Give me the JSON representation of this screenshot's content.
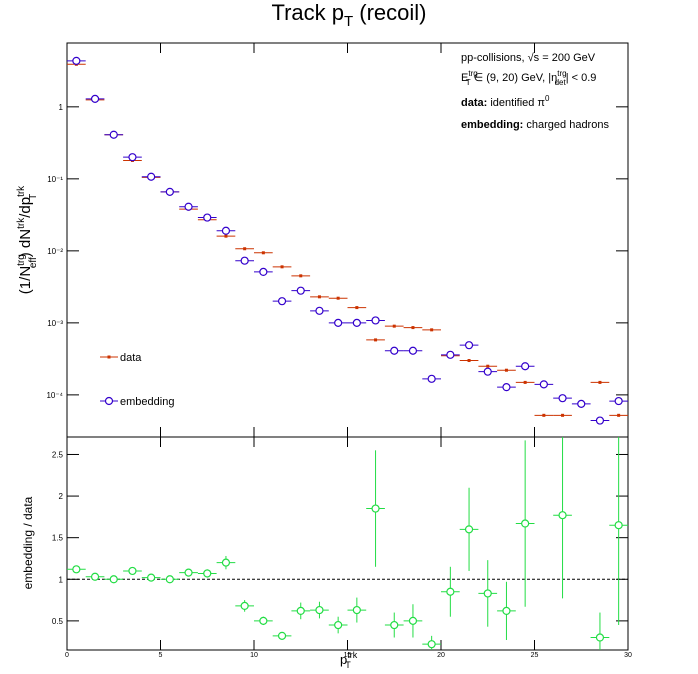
{
  "chart_data": [
    {
      "type": "scatter",
      "title": [
        "Track p",
        "T",
        " (recoil)"
      ],
      "ylabel": [
        "(1/N",
        "trg",
        "eff",
        ") dN",
        "trk",
        "/dp",
        "trk",
        "T"
      ],
      "annotations": [
        [
          "pp-collisions, ",
          "√s = 200 GeV"
        ],
        [
          "E",
          "trg",
          "T",
          " ∈ (9, 20) GeV, |η",
          "trg",
          "det",
          "| < 0.9"
        ],
        [
          "data:",
          " identified π",
          "0"
        ],
        [
          "embedding:",
          " charged hadrons"
        ]
      ],
      "x": [
        0.5,
        1.5,
        2.5,
        3.5,
        4.5,
        5.5,
        6.5,
        7.5,
        8.5,
        9.5,
        10.5,
        11.5,
        12.5,
        13.5,
        14.5,
        15.5,
        16.5,
        17.5,
        18.5,
        19.5,
        20.5,
        21.5,
        22.5,
        23.5,
        24.5,
        25.5,
        26.5,
        27.5,
        28.5,
        29.5
      ],
      "xerr": 0.5,
      "series": [
        {
          "name": "data",
          "color": "#cc3300",
          "marker": "square",
          "values": [
            3.9,
            1.25,
            0.41,
            0.18,
            0.105,
            0.066,
            0.038,
            0.027,
            0.016,
            0.0107,
            0.0094,
            0.006,
            0.0045,
            0.0023,
            0.0022,
            0.00163,
            0.00058,
            0.0009,
            0.00086,
            0.0008,
            0.00035,
            0.0003,
            0.00025,
            0.00022,
            0.000149,
            5.2e-05,
            5.2e-05,
            null,
            0.000149,
            5.2e-05
          ]
        },
        {
          "name": "embedding",
          "color": "#3300cc",
          "marker": "circle",
          "values": [
            4.35,
            1.29,
            0.41,
            0.2,
            0.107,
            0.066,
            0.041,
            0.029,
            0.019,
            0.0073,
            0.0051,
            0.002,
            0.0028,
            0.00147,
            0.001,
            0.001,
            0.00108,
            0.00041,
            0.00041,
            0.000167,
            0.00036,
            0.00049,
            0.00021,
            0.000128,
            0.00025,
            0.00014,
            9e-05,
            7.5e-05,
            4.4e-05,
            8.2e-05
          ]
        }
      ],
      "xlim": [
        0,
        30
      ],
      "xticks": [
        0,
        5,
        10,
        15,
        20,
        25,
        30
      ],
      "ylim": [
        2.6e-05,
        7.7
      ],
      "log_y": true,
      "yticks": [
        {
          "value": 0.0001,
          "label": "10⁻⁴"
        },
        {
          "value": 0.001,
          "label": "10⁻³"
        },
        {
          "value": 0.01,
          "label": "10⁻²"
        },
        {
          "value": 0.1,
          "label": "10⁻¹"
        },
        1
      ],
      "legend": "lower left"
    },
    {
      "type": "scatter",
      "ylabel": "embedding / data",
      "xlabel": [
        "p",
        "trk",
        "T"
      ],
      "x": [
        0.5,
        1.5,
        2.5,
        3.5,
        4.5,
        5.5,
        6.5,
        7.5,
        8.5,
        9.5,
        10.5,
        11.5,
        12.5,
        13.5,
        14.5,
        15.5,
        16.5,
        17.5,
        18.5,
        19.5,
        20.5,
        21.5,
        22.5,
        23.5,
        24.5,
        25.5,
        26.5,
        27.5,
        28.5,
        29.5
      ],
      "xerr": 0.5,
      "series": [
        {
          "color": "#22dd44",
          "values": [
            1.12,
            1.03,
            1.0,
            1.1,
            1.02,
            1.0,
            1.08,
            1.07,
            1.2,
            0.68,
            0.5,
            0.32,
            0.62,
            0.63,
            0.45,
            0.63,
            1.85,
            0.45,
            0.5,
            0.22,
            0.85,
            1.6,
            0.83,
            0.62,
            1.67,
            null,
            1.77,
            null,
            0.3,
            1.65
          ],
          "errors": [
            0.03,
            0.03,
            0.03,
            0.03,
            0.03,
            0.03,
            0.04,
            0.05,
            0.08,
            0.07,
            0.05,
            0.04,
            0.1,
            0.1,
            0.1,
            0.15,
            0.7,
            0.15,
            0.2,
            0.1,
            0.3,
            0.5,
            0.4,
            0.35,
            1.0,
            null,
            1.0,
            null,
            0.3,
            1.2
          ]
        }
      ],
      "xlim": [
        0,
        30
      ],
      "xticks": [
        0,
        5,
        10,
        15,
        20,
        25,
        30
      ],
      "ylim": [
        0.15,
        2.71
      ],
      "yticks": [
        0.5,
        1,
        1.5,
        2,
        2.5
      ],
      "reference": 1
    }
  ]
}
